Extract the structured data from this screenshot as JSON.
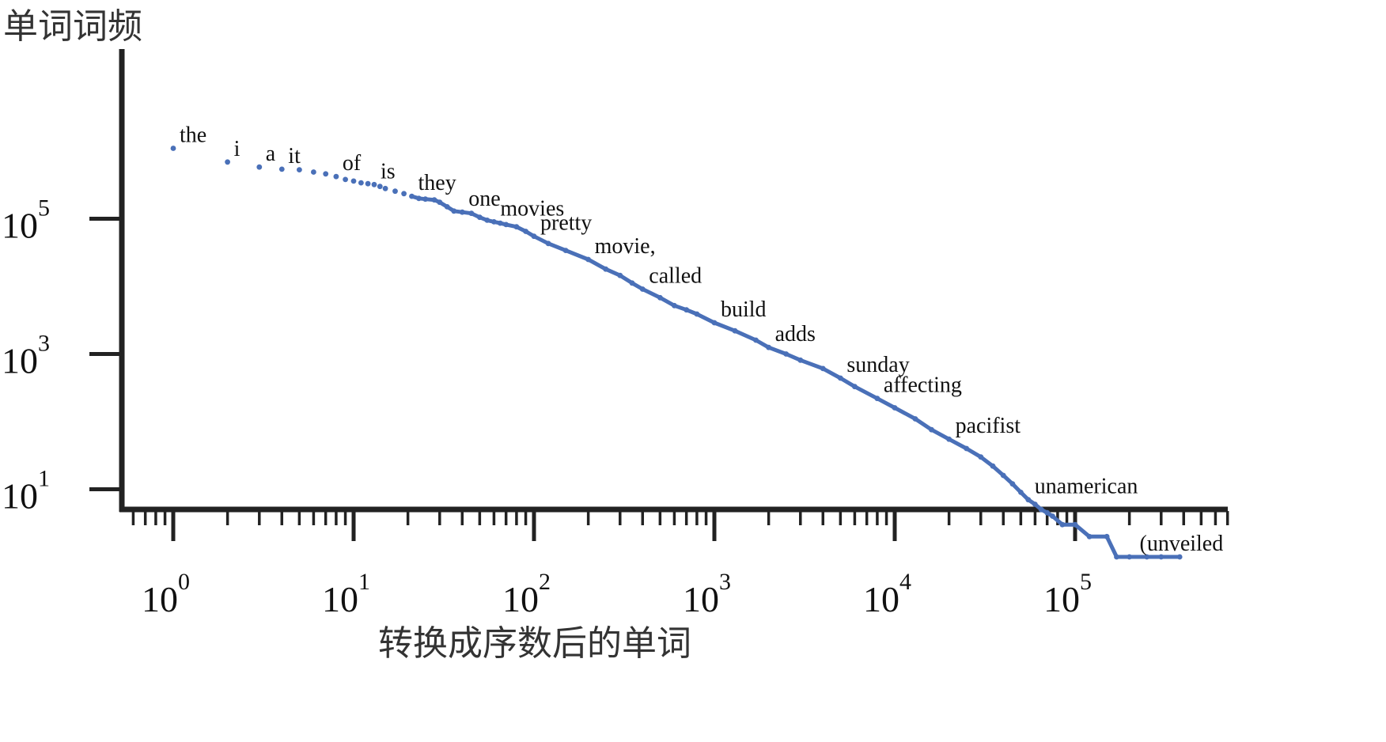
{
  "chart_data": {
    "type": "scatter",
    "title": "",
    "xlabel": "转换成序数后的单词",
    "ylabel": "单词词频",
    "x_scale": "log",
    "y_scale": "log",
    "xlim": [
      0.55,
      750000
    ],
    "ylim": [
      0.6,
      1500000
    ],
    "x_ticks": [
      {
        "value": 1,
        "base": "10",
        "exp": "0"
      },
      {
        "value": 10,
        "base": "10",
        "exp": "1"
      },
      {
        "value": 100,
        "base": "10",
        "exp": "2"
      },
      {
        "value": 1000,
        "base": "10",
        "exp": "3"
      },
      {
        "value": 10000,
        "base": "10",
        "exp": "4"
      },
      {
        "value": 100000,
        "base": "10",
        "exp": "5"
      }
    ],
    "y_ticks": [
      {
        "value": 10,
        "base": "10",
        "exp": "1"
      },
      {
        "value": 1000,
        "base": "10",
        "exp": "3"
      },
      {
        "value": 100000,
        "base": "10",
        "exp": "5"
      }
    ],
    "grid": false,
    "series_color": "#4a70b8",
    "points": [
      [
        1,
        1100000
      ],
      [
        2,
        690000
      ],
      [
        3,
        580000
      ],
      [
        4,
        540000
      ],
      [
        5,
        530000
      ],
      [
        6,
        490000
      ],
      [
        7,
        460000
      ],
      [
        8,
        420000
      ],
      [
        9,
        380000
      ],
      [
        10,
        360000
      ],
      [
        11,
        340000
      ],
      [
        12,
        330000
      ],
      [
        13,
        320000
      ],
      [
        14,
        300000
      ],
      [
        15,
        280000
      ],
      [
        17,
        255000
      ],
      [
        19,
        235000
      ],
      [
        21,
        215000
      ],
      [
        23,
        200000
      ],
      [
        25,
        195000
      ],
      [
        28,
        190000
      ],
      [
        30,
        175000
      ],
      [
        33,
        150000
      ],
      [
        36,
        130000
      ],
      [
        40,
        125000
      ],
      [
        45,
        120000
      ],
      [
        50,
        105000
      ],
      [
        55,
        95000
      ],
      [
        60,
        90000
      ],
      [
        65,
        86000
      ],
      [
        70,
        82000
      ],
      [
        80,
        76000
      ],
      [
        90,
        65000
      ],
      [
        100,
        55000
      ],
      [
        120,
        43000
      ],
      [
        150,
        34000
      ],
      [
        200,
        25000
      ],
      [
        250,
        18000
      ],
      [
        300,
        14500
      ],
      [
        350,
        11200
      ],
      [
        400,
        9100
      ],
      [
        500,
        6800
      ],
      [
        600,
        5200
      ],
      [
        700,
        4500
      ],
      [
        800,
        3900
      ],
      [
        1000,
        2900
      ],
      [
        1300,
        2200
      ],
      [
        1700,
        1600
      ],
      [
        2000,
        1250
      ],
      [
        2500,
        1000
      ],
      [
        3000,
        810
      ],
      [
        4000,
        610
      ],
      [
        5000,
        440
      ],
      [
        6000,
        330
      ],
      [
        8000,
        220
      ],
      [
        10000,
        160
      ],
      [
        13000,
        110
      ],
      [
        16000,
        76
      ],
      [
        20000,
        55
      ],
      [
        25000,
        40
      ],
      [
        30000,
        30
      ],
      [
        35000,
        22
      ],
      [
        40000,
        16
      ],
      [
        45000,
        12
      ],
      [
        50000,
        9
      ],
      [
        55000,
        7
      ],
      [
        60000,
        6
      ],
      [
        65000,
        5
      ],
      [
        70000,
        4.5
      ],
      [
        75000,
        4
      ],
      [
        85000,
        3
      ],
      [
        100000,
        3
      ],
      [
        120000,
        2
      ],
      [
        150000,
        2
      ],
      [
        170000,
        1
      ],
      [
        200000,
        1
      ],
      [
        250000,
        1
      ],
      [
        300000,
        1
      ],
      [
        380000,
        1
      ]
    ],
    "annotations": [
      {
        "text": "the",
        "x": 1,
        "y": 1100000
      },
      {
        "text": "i",
        "x": 2,
        "y": 690000
      },
      {
        "text": "a",
        "x": 3,
        "y": 580000
      },
      {
        "text": "it",
        "x": 4,
        "y": 540000
      },
      {
        "text": "of",
        "x": 8,
        "y": 420000
      },
      {
        "text": "is",
        "x": 13,
        "y": 320000
      },
      {
        "text": "they",
        "x": 21,
        "y": 215000
      },
      {
        "text": "one",
        "x": 40,
        "y": 125000
      },
      {
        "text": "movies",
        "x": 60,
        "y": 90000
      },
      {
        "text": "pretty",
        "x": 100,
        "y": 55000
      },
      {
        "text": "movie,",
        "x": 200,
        "y": 25000
      },
      {
        "text": "called",
        "x": 400,
        "y": 9100
      },
      {
        "text": "build",
        "x": 1000,
        "y": 2900
      },
      {
        "text": "adds",
        "x": 2000,
        "y": 1250
      },
      {
        "text": "sunday",
        "x": 5000,
        "y": 440
      },
      {
        "text": "affecting",
        "x": 8000,
        "y": 220
      },
      {
        "text": "pacifist",
        "x": 20000,
        "y": 55
      },
      {
        "text": "unamerican",
        "x": 55000,
        "y": 7
      },
      {
        "text": "(unveiled",
        "x": 210000,
        "y": 1
      }
    ]
  }
}
